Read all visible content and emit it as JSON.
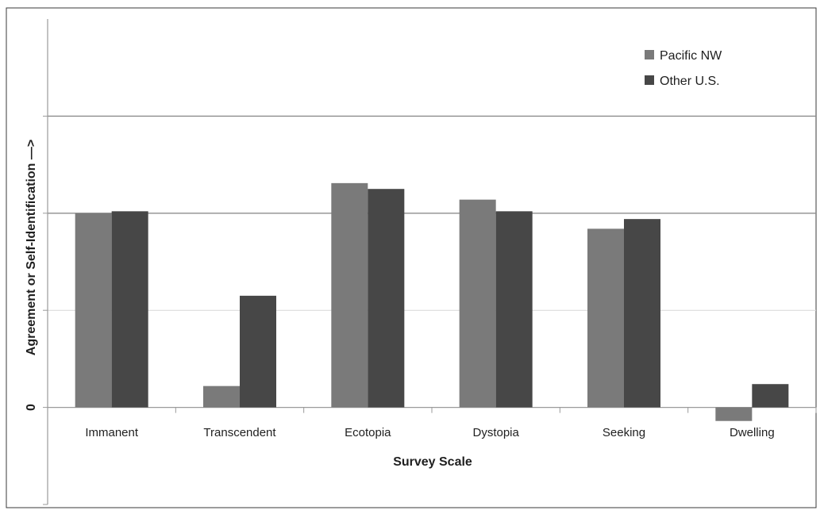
{
  "chart_data": {
    "type": "bar",
    "title": "",
    "xlabel": "Survey Scale",
    "ylabel": "Agreement or Self-Identification —>",
    "categories": [
      "Immanent",
      "Transcendent",
      "Ecotopia",
      "Dystopia",
      "Seeking",
      "Dwelling"
    ],
    "series": [
      {
        "name": "Pacific NW",
        "color": "#7a7a7a",
        "values": [
          2.0,
          0.22,
          2.31,
          2.14,
          1.84,
          -0.14
        ]
      },
      {
        "name": "Other U.S.",
        "color": "#474747",
        "values": [
          2.02,
          1.15,
          2.25,
          2.02,
          1.94,
          0.24
        ]
      }
    ],
    "ylim": [
      -1,
      4
    ],
    "y_tick_labels": [
      {
        "value": 0,
        "label": "0"
      }
    ],
    "grid": true,
    "legend": "top-right"
  }
}
